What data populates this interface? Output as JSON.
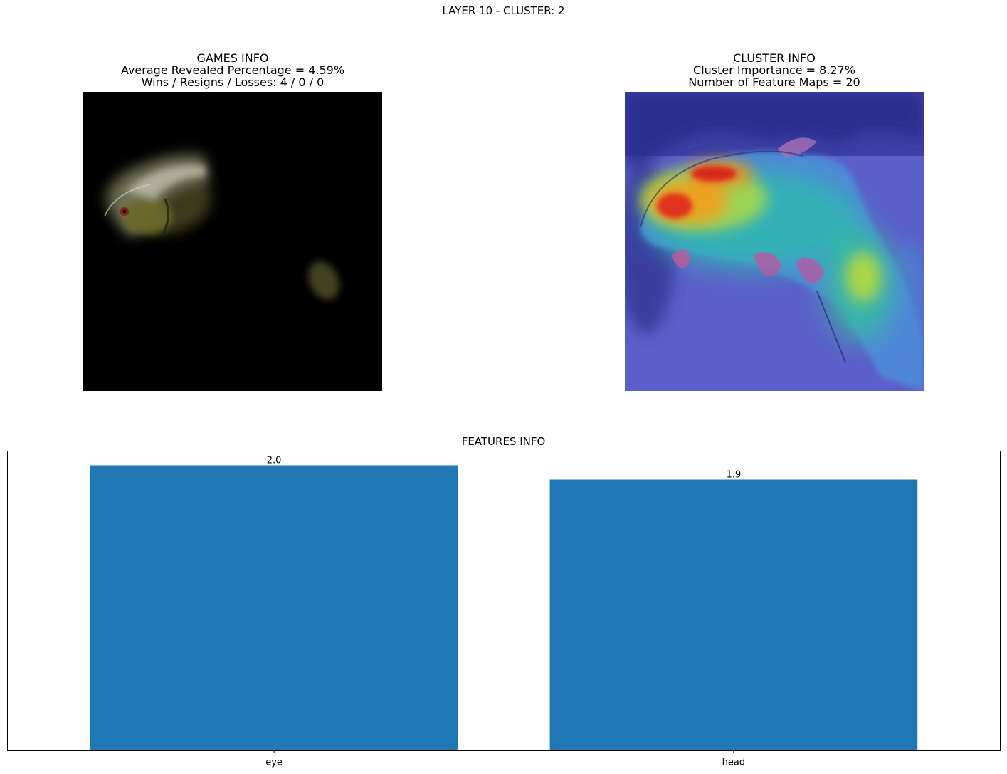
{
  "figure": {
    "suptitle": "LAYER 10 - CLUSTER: 2"
  },
  "games_panel": {
    "lines": [
      "GAMES INFO",
      "Average Revealed Percentage = 4.59%",
      "Wins / Resigns / Losses: 4 / 0 / 0"
    ]
  },
  "cluster_panel": {
    "lines": [
      "CLUSTER INFO",
      "Cluster Importance = 8.27%",
      "Number of Feature Maps = 20"
    ]
  },
  "features_panel": {
    "title": "FEATURES INFO"
  },
  "chart_data": {
    "type": "bar",
    "title": "FEATURES INFO",
    "categories": [
      "eye",
      "head"
    ],
    "values": [
      2.0,
      1.9
    ],
    "value_labels": [
      "2.0",
      "1.9"
    ],
    "xlabel": "",
    "ylabel": "",
    "y_ticks_visible": false,
    "ylim": [
      0,
      2.1
    ],
    "bar_color": "#1f77b4",
    "grid": false
  }
}
